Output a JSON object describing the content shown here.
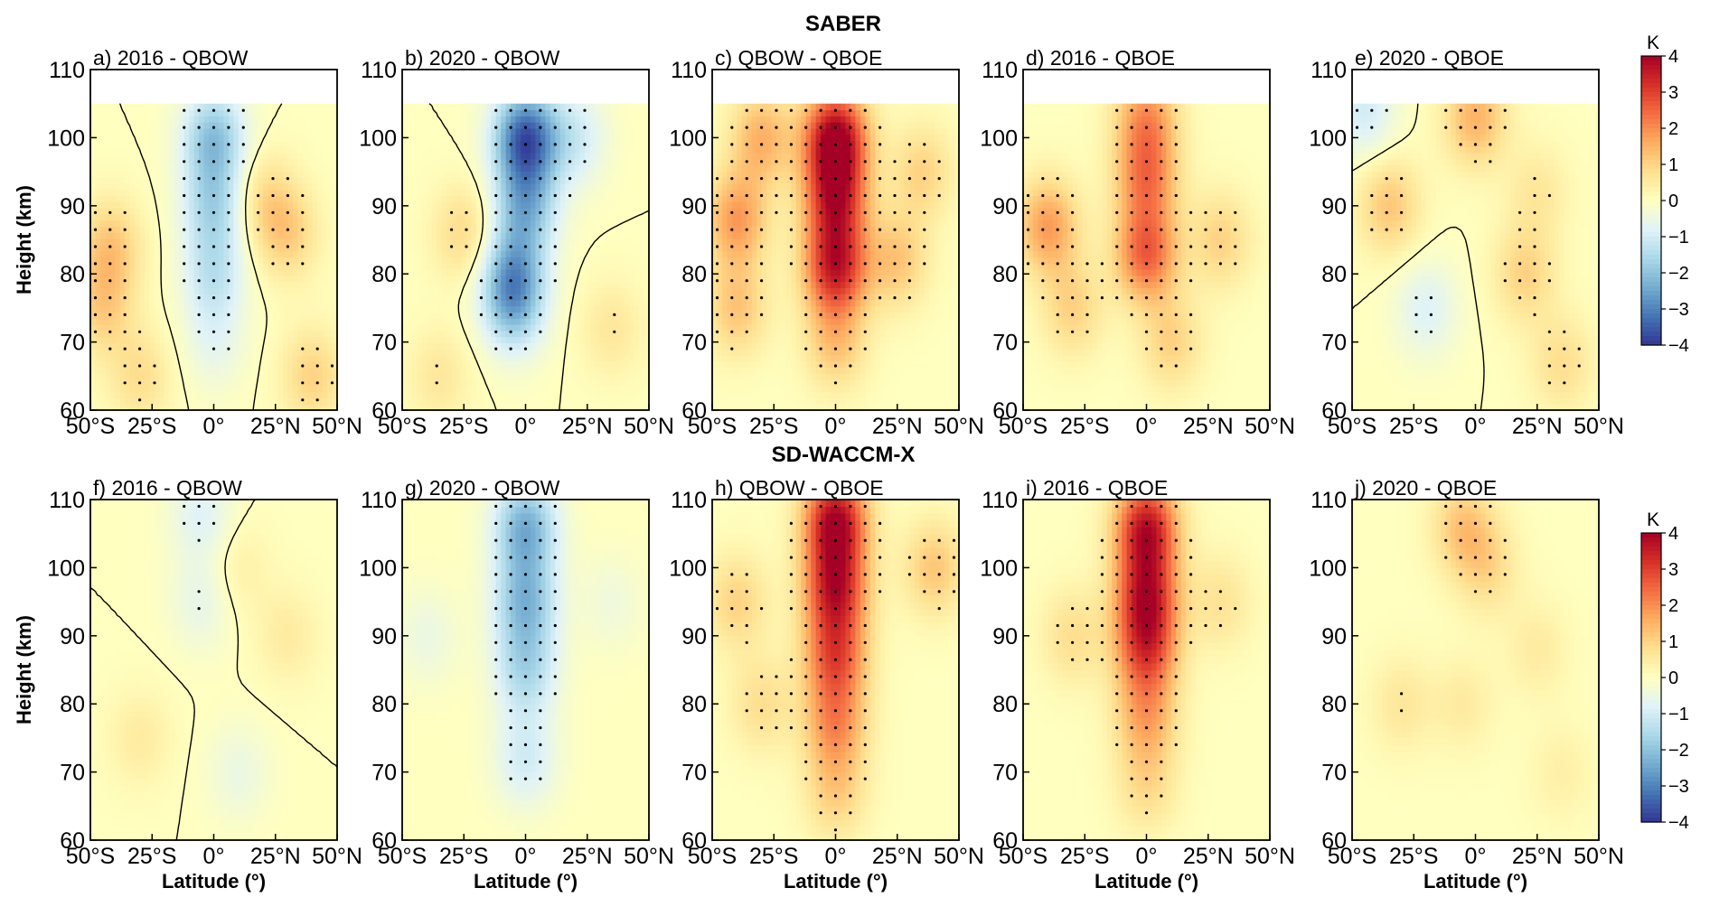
{
  "figure": {
    "rows": [
      {
        "title": "SABER",
        "model_top_km": 105
      },
      {
        "title": "SD-WACCM-X",
        "model_top_km": 110
      }
    ]
  },
  "chart_data": {
    "type": "heatmap",
    "variable_unit": "K",
    "colormap": "RdYlBu_r",
    "color_range": [
      -4,
      4
    ],
    "colorbar": {
      "unit": "K",
      "ticks": [
        -4,
        -3,
        -2,
        -1,
        0,
        1,
        2,
        3,
        4
      ],
      "tick_labels": [
        "−4",
        "−3",
        "−2",
        "−1",
        "0",
        "1",
        "2",
        "3",
        "4"
      ]
    },
    "x_axis": {
      "label": "Latitude (°)",
      "range": [
        -50,
        50
      ],
      "ticks": [
        -50,
        -25,
        0,
        25,
        50
      ],
      "tick_labels": [
        "50°S",
        "25°S",
        "0°",
        "25°N",
        "50°N"
      ]
    },
    "y_axis": {
      "label": "Height (km)",
      "range": [
        60,
        110
      ],
      "ticks": [
        60,
        70,
        80,
        90,
        100,
        110
      ],
      "tick_labels": [
        "60",
        "70",
        "80",
        "90",
        "100",
        "110"
      ]
    },
    "contour_levels": [
      0
    ],
    "stippling": "statistically significant differences",
    "panels": [
      {
        "id": "a",
        "title": "a) 2016 - QBOW",
        "row": 0,
        "peaks": [
          {
            "lat": 0,
            "z": 100,
            "value": -2.0
          },
          {
            "lat": 0,
            "z": 90,
            "value": -1.5
          },
          {
            "lat": 0,
            "z": 80,
            "value": -1.2
          },
          {
            "lat": -42,
            "z": 84,
            "value": 1.2
          },
          {
            "lat": -45,
            "z": 75,
            "value": 1.0
          },
          {
            "lat": 30,
            "z": 86,
            "value": 1.0
          },
          {
            "lat": 20,
            "z": 91,
            "value": 0.8
          },
          {
            "lat": -30,
            "z": 65,
            "value": 0.8
          },
          {
            "lat": 40,
            "z": 65,
            "value": 1.0
          },
          {
            "lat": 0,
            "z": 70,
            "value": -0.6
          }
        ]
      },
      {
        "id": "b",
        "title": "b) 2020 - QBOW",
        "row": 0,
        "peaks": [
          {
            "lat": 0,
            "z": 100,
            "value": -3.5
          },
          {
            "lat": 0,
            "z": 90,
            "value": -2.0
          },
          {
            "lat": -5,
            "z": 80,
            "value": -2.0
          },
          {
            "lat": -5,
            "z": 75,
            "value": -1.5
          },
          {
            "lat": -25,
            "z": 86,
            "value": 0.9
          },
          {
            "lat": 20,
            "z": 100,
            "value": -1.0
          },
          {
            "lat": 35,
            "z": 72,
            "value": 0.6
          },
          {
            "lat": -35,
            "z": 65,
            "value": 0.6
          }
        ]
      },
      {
        "id": "c",
        "title": "c) QBOW - QBOE",
        "row": 0,
        "peaks": [
          {
            "lat": 0,
            "z": 100,
            "value": 4.0
          },
          {
            "lat": 0,
            "z": 91,
            "value": 3.0
          },
          {
            "lat": 0,
            "z": 81,
            "value": 3.3
          },
          {
            "lat": -40,
            "z": 88,
            "value": 1.8
          },
          {
            "lat": -30,
            "z": 100,
            "value": 1.5
          },
          {
            "lat": 25,
            "z": 82,
            "value": 1.2
          },
          {
            "lat": 0,
            "z": 70,
            "value": 1.2
          },
          {
            "lat": 35,
            "z": 95,
            "value": 1.0
          },
          {
            "lat": -40,
            "z": 75,
            "value": 1.2
          }
        ]
      },
      {
        "id": "d",
        "title": "d) 2016 - QBOE",
        "row": 0,
        "peaks": [
          {
            "lat": 0,
            "z": 103,
            "value": 1.8
          },
          {
            "lat": 0,
            "z": 94,
            "value": 2.0
          },
          {
            "lat": 0,
            "z": 83,
            "value": 2.5
          },
          {
            "lat": -40,
            "z": 87,
            "value": 1.8
          },
          {
            "lat": -30,
            "z": 75,
            "value": 1.0
          },
          {
            "lat": 30,
            "z": 85,
            "value": 1.0
          },
          {
            "lat": 10,
            "z": 70,
            "value": 1.0
          }
        ]
      },
      {
        "id": "e",
        "title": "e) 2020 - QBOE",
        "row": 0,
        "peaks": [
          {
            "lat": -35,
            "z": 90,
            "value": 1.2
          },
          {
            "lat": 0,
            "z": 103,
            "value": 1.5
          },
          {
            "lat": 20,
            "z": 80,
            "value": 1.0
          },
          {
            "lat": -20,
            "z": 75,
            "value": -0.8
          },
          {
            "lat": -45,
            "z": 104,
            "value": -1.0
          },
          {
            "lat": 25,
            "z": 92,
            "value": 0.6
          },
          {
            "lat": 35,
            "z": 67,
            "value": 0.8
          }
        ]
      },
      {
        "id": "f",
        "title": "f) 2016 - QBOW",
        "row": 1,
        "peaks": [
          {
            "lat": -5,
            "z": 108,
            "value": -0.8
          },
          {
            "lat": -5,
            "z": 95,
            "value": -0.6
          },
          {
            "lat": 10,
            "z": 70,
            "value": -0.5
          },
          {
            "lat": 30,
            "z": 90,
            "value": 0.5
          },
          {
            "lat": -30,
            "z": 75,
            "value": 0.5
          },
          {
            "lat": 10,
            "z": 100,
            "value": 0.4
          }
        ]
      },
      {
        "id": "g",
        "title": "g) 2020 - QBOW",
        "row": 1,
        "peaks": [
          {
            "lat": 0,
            "z": 106,
            "value": -2.3
          },
          {
            "lat": 0,
            "z": 95,
            "value": -2.0
          },
          {
            "lat": 0,
            "z": 85,
            "value": -1.5
          },
          {
            "lat": 0,
            "z": 72,
            "value": -1.0
          },
          {
            "lat": -40,
            "z": 90,
            "value": -0.5
          },
          {
            "lat": 35,
            "z": 95,
            "value": -0.4
          }
        ]
      },
      {
        "id": "h",
        "title": "h) QBOW - QBOE",
        "row": 1,
        "peaks": [
          {
            "lat": 0,
            "z": 107,
            "value": 3.8
          },
          {
            "lat": 0,
            "z": 97,
            "value": 3.2
          },
          {
            "lat": 0,
            "z": 87,
            "value": 2.5
          },
          {
            "lat": 0,
            "z": 77,
            "value": 1.8
          },
          {
            "lat": 0,
            "z": 67,
            "value": 1.0
          },
          {
            "lat": -40,
            "z": 95,
            "value": 1.0
          },
          {
            "lat": 40,
            "z": 100,
            "value": 1.2
          },
          {
            "lat": -30,
            "z": 80,
            "value": 0.8
          }
        ]
      },
      {
        "id": "i",
        "title": "i) 2016 - QBOE",
        "row": 1,
        "peaks": [
          {
            "lat": 0,
            "z": 106,
            "value": 3.5
          },
          {
            "lat": 0,
            "z": 96,
            "value": 3.0
          },
          {
            "lat": 0,
            "z": 88,
            "value": 2.5
          },
          {
            "lat": 0,
            "z": 78,
            "value": 1.5
          },
          {
            "lat": -30,
            "z": 90,
            "value": 0.8
          },
          {
            "lat": 30,
            "z": 95,
            "value": 0.7
          },
          {
            "lat": 0,
            "z": 68,
            "value": 0.8
          }
        ]
      },
      {
        "id": "j",
        "title": "j) 2020 - QBOE",
        "row": 1,
        "peaks": [
          {
            "lat": -5,
            "z": 106,
            "value": 1.2
          },
          {
            "lat": 5,
            "z": 100,
            "value": 0.8
          },
          {
            "lat": -30,
            "z": 80,
            "value": 0.6
          },
          {
            "lat": 25,
            "z": 88,
            "value": 0.5
          },
          {
            "lat": -5,
            "z": 80,
            "value": 0.5
          },
          {
            "lat": 35,
            "z": 70,
            "value": 0.4
          }
        ]
      }
    ]
  }
}
